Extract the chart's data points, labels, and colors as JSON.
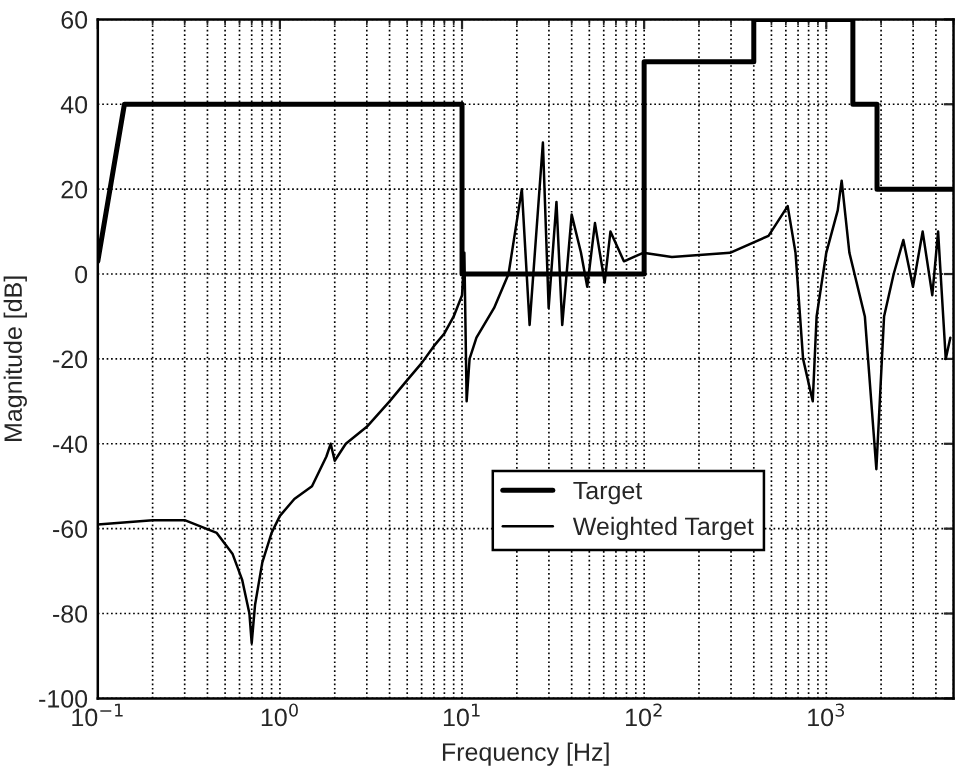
{
  "chart_data": {
    "type": "line",
    "xlabel": "Frequency [Hz]",
    "ylabel": "Magnitude [dB]",
    "log": "x",
    "grid": true,
    "legend": "bottom",
    "marker": "none",
    "line_style": "solid",
    "xlim": [
      0.1,
      5000
    ],
    "ylim": [
      -100,
      60
    ],
    "xticks": [
      {
        "value": 0.1,
        "label": "10$^{−1}$"
      },
      {
        "value": 1,
        "label": "10$^{0}$"
      },
      {
        "value": 10,
        "label": "10$^{1}$"
      },
      {
        "value": 100,
        "label": "10$^{2}$"
      },
      {
        "value": 1000,
        "label": "10$^{3}$"
      }
    ],
    "yticks": [
      -100,
      -80,
      -60,
      -40,
      -20,
      0,
      20,
      40,
      60
    ],
    "series": [
      {
        "name": "Target",
        "color": "#000000",
        "x": [
          0.1,
          0.14,
          10,
          10,
          100,
          100,
          400,
          400,
          1400,
          1400,
          1900,
          1900,
          5000
        ],
        "values": [
          3,
          40,
          40,
          0,
          0,
          50,
          50,
          60,
          60,
          40,
          40,
          20,
          20
        ]
      },
      {
        "name": "Weighted Target",
        "color": "#000000",
        "x": [
          0.1,
          0.2,
          0.3,
          0.45,
          0.55,
          0.62,
          0.68,
          0.7,
          0.73,
          0.8,
          0.9,
          1.0,
          1.2,
          1.5,
          1.8,
          1.9,
          2.0,
          2.3,
          3,
          4,
          5,
          6,
          7,
          8,
          9,
          10,
          10.3,
          10.6,
          11,
          12,
          15,
          18,
          21.3,
          23.5,
          27.8,
          29.9,
          33,
          35.5,
          40,
          45,
          48.7,
          53.7,
          60.7,
          65.3,
          77.4,
          98.8,
          142,
          296,
          482,
          614,
          678,
          746,
          843,
          885,
          1000,
          1156,
          1215,
          1340,
          1629,
          1884,
          2077,
          2345,
          2650,
          2993,
          3384,
          3822,
          4113,
          4530,
          4800
        ],
        "values": [
          -59,
          -58,
          -58,
          -61,
          -66,
          -72,
          -80,
          -87,
          -78,
          -68,
          -61,
          -57,
          -53,
          -50,
          -43,
          -40,
          -44,
          -40,
          -36,
          -30,
          -25,
          -21,
          -17,
          -14,
          -10,
          -5,
          5,
          -30,
          -20,
          -15,
          -8,
          0,
          20,
          -12,
          31,
          -8,
          17,
          -12,
          14,
          5,
          -3,
          12,
          -2,
          10,
          3,
          5,
          4,
          5,
          9,
          16,
          5,
          -20,
          -30,
          -10,
          5,
          15,
          22,
          5,
          -10,
          -46,
          -10,
          0,
          8,
          -3,
          10,
          -5,
          10,
          -20,
          -15
        ]
      }
    ]
  }
}
